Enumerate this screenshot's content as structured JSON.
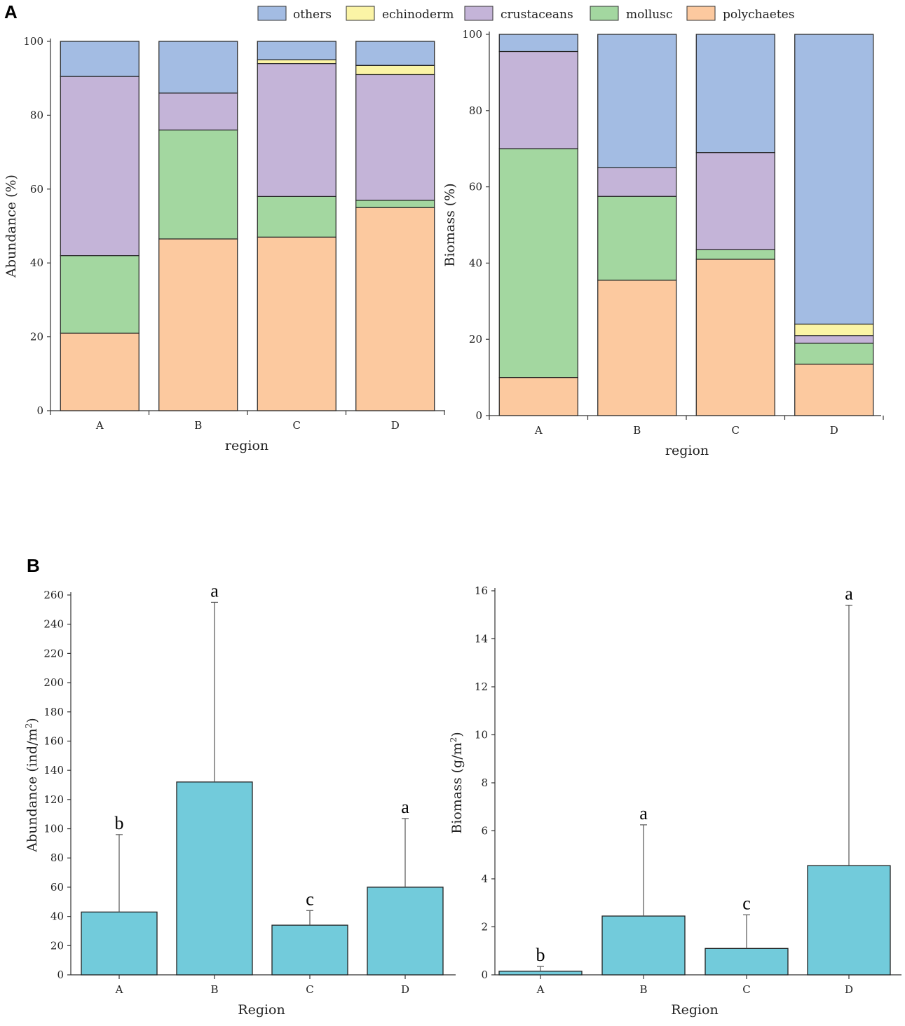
{
  "panel_labels": {
    "a": "A",
    "b": "B"
  },
  "legend": {
    "items": [
      {
        "label": "others",
        "color": "#a3bce3"
      },
      {
        "label": "echinoderm",
        "color": "#fbf4a6"
      },
      {
        "label": "crustaceans",
        "color": "#c4b4d8"
      },
      {
        "label": "mollusc",
        "color": "#a3d7a0"
      },
      {
        "label": "polychaetes",
        "color": "#fcc99f"
      }
    ]
  },
  "chart_data": [
    {
      "id": "stacked-abundance",
      "type": "bar",
      "stacked": true,
      "categories": [
        "A",
        "B",
        "C",
        "D"
      ],
      "xlabel": "region",
      "ylabel": "Abundance (%)",
      "ylim": [
        0,
        100
      ],
      "yticks": [
        0,
        20,
        40,
        60,
        80,
        100
      ],
      "series": [
        {
          "name": "polychaetes",
          "values": [
            21,
            46.5,
            47,
            55
          ]
        },
        {
          "name": "mollusc",
          "values": [
            21,
            29.5,
            11,
            2
          ]
        },
        {
          "name": "crustaceans",
          "values": [
            48.5,
            10,
            36,
            34
          ]
        },
        {
          "name": "echinoderm",
          "values": [
            0,
            0,
            1,
            2.5
          ]
        },
        {
          "name": "others",
          "values": [
            9.5,
            14,
            5,
            6.5
          ]
        }
      ]
    },
    {
      "id": "stacked-biomass",
      "type": "bar",
      "stacked": true,
      "categories": [
        "A",
        "B",
        "C",
        "D"
      ],
      "xlabel": "region",
      "ylabel": "Biomass (%)",
      "ylim": [
        0,
        100
      ],
      "yticks": [
        0,
        20,
        40,
        60,
        80,
        100
      ],
      "series": [
        {
          "name": "polychaetes",
          "values": [
            10,
            35.5,
            41,
            13.5
          ]
        },
        {
          "name": "mollusc",
          "values": [
            60,
            22,
            2.5,
            5.5
          ]
        },
        {
          "name": "crustaceans",
          "values": [
            25.5,
            7.5,
            25.5,
            2
          ]
        },
        {
          "name": "echinoderm",
          "values": [
            0,
            0,
            0,
            3
          ]
        },
        {
          "name": "others",
          "values": [
            4.5,
            35,
            31,
            76
          ]
        }
      ]
    },
    {
      "id": "bar-abundance",
      "type": "bar",
      "categories": [
        "A",
        "B",
        "C",
        "D"
      ],
      "xlabel": "Region",
      "ylabel": "Abundance (ind/m",
      "ylabel_sup": "2",
      "ylabel_end": ")",
      "ylim": [
        0,
        260
      ],
      "yticks": [
        0,
        20,
        40,
        60,
        80,
        100,
        120,
        140,
        160,
        180,
        200,
        220,
        240,
        260
      ],
      "values": [
        43,
        132,
        34,
        60
      ],
      "error_upper": [
        96,
        255,
        44,
        107
      ],
      "significance": [
        "b",
        "a",
        "c",
        "a"
      ],
      "color": "#72cbdb"
    },
    {
      "id": "bar-biomass",
      "type": "bar",
      "categories": [
        "A",
        "B",
        "C",
        "D"
      ],
      "xlabel": "Region",
      "ylabel": "Biomass (g/m",
      "ylabel_sup": "2",
      "ylabel_end": ")",
      "ylim": [
        0,
        16
      ],
      "yticks": [
        0,
        2,
        4,
        6,
        8,
        10,
        12,
        14,
        16
      ],
      "values": [
        0.15,
        2.45,
        1.1,
        4.55
      ],
      "error_upper": [
        0.35,
        6.25,
        2.5,
        15.4
      ],
      "significance": [
        "b",
        "a",
        "c",
        "a"
      ],
      "color": "#72cbdb"
    }
  ]
}
